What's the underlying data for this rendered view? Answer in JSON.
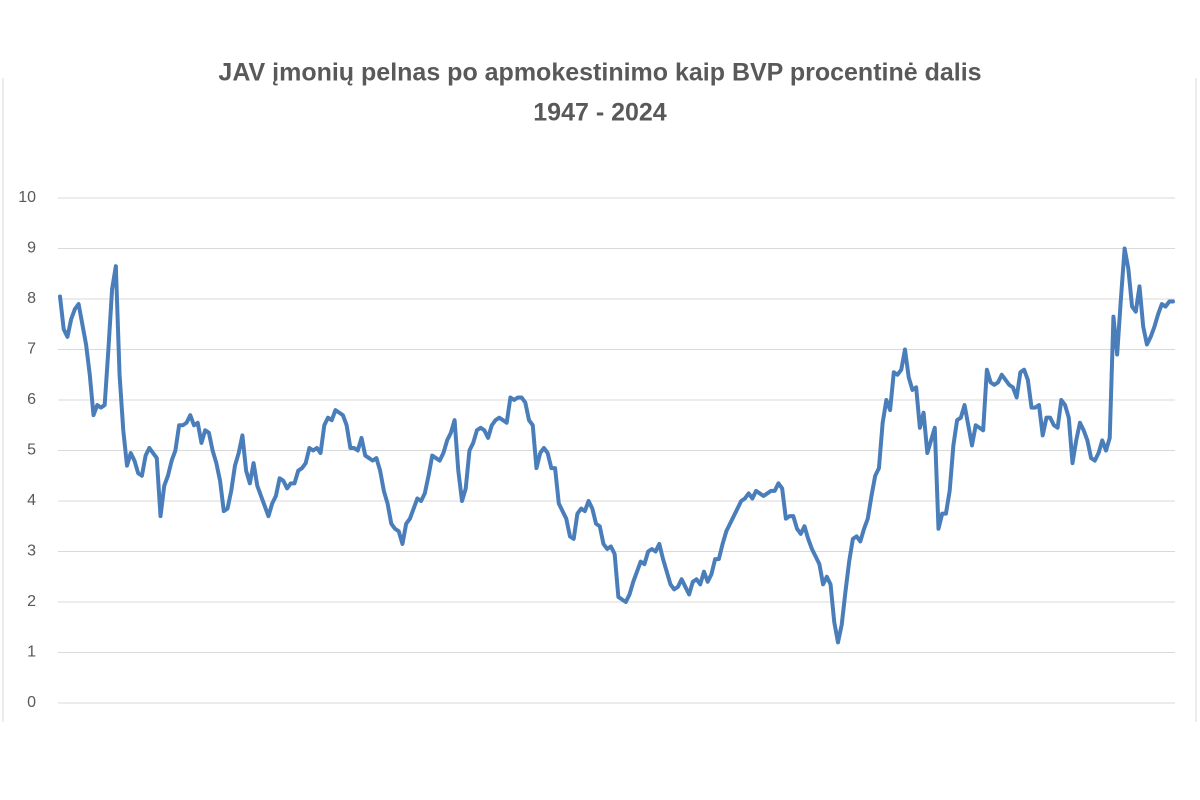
{
  "chart_data": {
    "type": "line",
    "title": "JAV įmonių pelnas po apmokestinimo kaip BVP procentinė dalis",
    "subtitle": "1947 - 2024",
    "ylim": [
      0,
      10
    ],
    "yticks": [
      0,
      1,
      2,
      3,
      4,
      5,
      6,
      7,
      8,
      9,
      10
    ],
    "grid": true,
    "series": [
      {
        "color": "#4a7ebb",
        "values": [
          8.05,
          7.4,
          7.25,
          7.6,
          7.8,
          7.9,
          7.5,
          7.1,
          6.5,
          5.7,
          5.9,
          5.85,
          5.9,
          7.0,
          8.2,
          8.65,
          6.5,
          5.4,
          4.7,
          4.95,
          4.8,
          4.55,
          4.5,
          4.9,
          5.05,
          4.95,
          4.85,
          3.7,
          4.3,
          4.5,
          4.8,
          5.0,
          5.5,
          5.5,
          5.55,
          5.7,
          5.5,
          5.55,
          5.15,
          5.4,
          5.35,
          5.0,
          4.75,
          4.4,
          3.8,
          3.85,
          4.2,
          4.7,
          4.95,
          5.3,
          4.6,
          4.35,
          4.75,
          4.3,
          4.1,
          3.9,
          3.7,
          3.95,
          4.1,
          4.45,
          4.4,
          4.25,
          4.35,
          4.35,
          4.6,
          4.65,
          4.75,
          5.05,
          5.0,
          5.05,
          4.95,
          5.5,
          5.65,
          5.6,
          5.8,
          5.75,
          5.7,
          5.5,
          5.05,
          5.05,
          5.0,
          5.25,
          4.9,
          4.85,
          4.8,
          4.85,
          4.6,
          4.2,
          3.95,
          3.55,
          3.45,
          3.4,
          3.15,
          3.55,
          3.65,
          3.85,
          4.05,
          4.0,
          4.15,
          4.5,
          4.9,
          4.85,
          4.8,
          4.95,
          5.2,
          5.35,
          5.6,
          4.6,
          4.0,
          4.25,
          5.0,
          5.15,
          5.4,
          5.45,
          5.4,
          5.25,
          5.5,
          5.6,
          5.65,
          5.6,
          5.55,
          6.05,
          6.0,
          6.05,
          6.05,
          5.95,
          5.6,
          5.5,
          4.65,
          4.95,
          5.05,
          4.95,
          4.65,
          4.65,
          3.95,
          3.8,
          3.65,
          3.3,
          3.25,
          3.75,
          3.85,
          3.8,
          4.0,
          3.85,
          3.55,
          3.5,
          3.15,
          3.05,
          3.1,
          2.95,
          2.1,
          2.05,
          2.0,
          2.15,
          2.4,
          2.6,
          2.8,
          2.75,
          3.0,
          3.05,
          3.0,
          3.15,
          2.85,
          2.6,
          2.35,
          2.25,
          2.3,
          2.45,
          2.3,
          2.15,
          2.4,
          2.45,
          2.35,
          2.6,
          2.4,
          2.55,
          2.85,
          2.85,
          3.15,
          3.4,
          3.55,
          3.7,
          3.85,
          4.0,
          4.05,
          4.15,
          4.05,
          4.2,
          4.15,
          4.1,
          4.15,
          4.2,
          4.2,
          4.35,
          4.25,
          3.65,
          3.7,
          3.7,
          3.45,
          3.35,
          3.5,
          3.25,
          3.05,
          2.9,
          2.75,
          2.35,
          2.5,
          2.35,
          1.6,
          1.2,
          1.55,
          2.2,
          2.8,
          3.25,
          3.3,
          3.2,
          3.45,
          3.65,
          4.1,
          4.5,
          4.65,
          5.55,
          6.0,
          5.8,
          6.55,
          6.5,
          6.6,
          7.0,
          6.45,
          6.2,
          6.25,
          5.45,
          5.75,
          4.95,
          5.2,
          5.45,
          3.45,
          3.75,
          3.75,
          4.2,
          5.1,
          5.6,
          5.65,
          5.9,
          5.5,
          5.1,
          5.5,
          5.45,
          5.4,
          6.6,
          6.35,
          6.3,
          6.35,
          6.5,
          6.4,
          6.3,
          6.25,
          6.05,
          6.55,
          6.6,
          6.4,
          5.85,
          5.85,
          5.9,
          5.3,
          5.65,
          5.65,
          5.5,
          5.45,
          6.0,
          5.9,
          5.65,
          4.75,
          5.2,
          5.55,
          5.4,
          5.2,
          4.85,
          4.8,
          4.95,
          5.2,
          5.0,
          5.25,
          7.65,
          6.9,
          8.0,
          9.0,
          8.6,
          7.85,
          7.75,
          8.25,
          7.45,
          7.1,
          7.25,
          7.45,
          7.7,
          7.9,
          7.85,
          7.95,
          7.95
        ]
      }
    ]
  }
}
